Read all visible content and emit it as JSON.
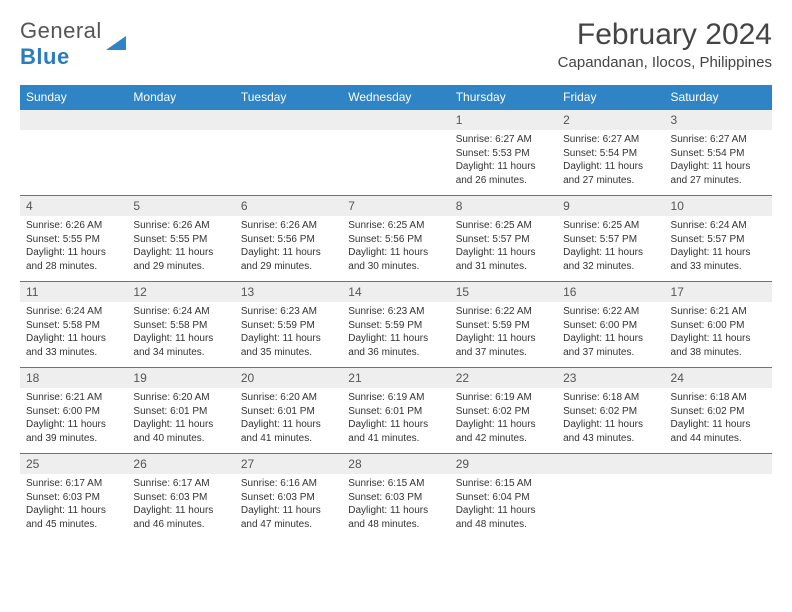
{
  "logo": {
    "text1": "General",
    "text2": "Blue"
  },
  "title": "February 2024",
  "location": "Capandanan, Ilocos, Philippines",
  "colors": {
    "header_bg": "#2e84c5",
    "header_text": "#ffffff",
    "daynum_bg": "#eeeeee",
    "border": "#2e84c5",
    "body_text": "#333333",
    "title_text": "#444444"
  },
  "weekdays": [
    "Sunday",
    "Monday",
    "Tuesday",
    "Wednesday",
    "Thursday",
    "Friday",
    "Saturday"
  ],
  "weeks": [
    {
      "nums": [
        "",
        "",
        "",
        "",
        "1",
        "2",
        "3"
      ],
      "cells": [
        null,
        null,
        null,
        null,
        {
          "sr": "Sunrise: 6:27 AM",
          "ss": "Sunset: 5:53 PM",
          "d1": "Daylight: 11 hours",
          "d2": "and 26 minutes."
        },
        {
          "sr": "Sunrise: 6:27 AM",
          "ss": "Sunset: 5:54 PM",
          "d1": "Daylight: 11 hours",
          "d2": "and 27 minutes."
        },
        {
          "sr": "Sunrise: 6:27 AM",
          "ss": "Sunset: 5:54 PM",
          "d1": "Daylight: 11 hours",
          "d2": "and 27 minutes."
        }
      ]
    },
    {
      "nums": [
        "4",
        "5",
        "6",
        "7",
        "8",
        "9",
        "10"
      ],
      "cells": [
        {
          "sr": "Sunrise: 6:26 AM",
          "ss": "Sunset: 5:55 PM",
          "d1": "Daylight: 11 hours",
          "d2": "and 28 minutes."
        },
        {
          "sr": "Sunrise: 6:26 AM",
          "ss": "Sunset: 5:55 PM",
          "d1": "Daylight: 11 hours",
          "d2": "and 29 minutes."
        },
        {
          "sr": "Sunrise: 6:26 AM",
          "ss": "Sunset: 5:56 PM",
          "d1": "Daylight: 11 hours",
          "d2": "and 29 minutes."
        },
        {
          "sr": "Sunrise: 6:25 AM",
          "ss": "Sunset: 5:56 PM",
          "d1": "Daylight: 11 hours",
          "d2": "and 30 minutes."
        },
        {
          "sr": "Sunrise: 6:25 AM",
          "ss": "Sunset: 5:57 PM",
          "d1": "Daylight: 11 hours",
          "d2": "and 31 minutes."
        },
        {
          "sr": "Sunrise: 6:25 AM",
          "ss": "Sunset: 5:57 PM",
          "d1": "Daylight: 11 hours",
          "d2": "and 32 minutes."
        },
        {
          "sr": "Sunrise: 6:24 AM",
          "ss": "Sunset: 5:57 PM",
          "d1": "Daylight: 11 hours",
          "d2": "and 33 minutes."
        }
      ]
    },
    {
      "nums": [
        "11",
        "12",
        "13",
        "14",
        "15",
        "16",
        "17"
      ],
      "cells": [
        {
          "sr": "Sunrise: 6:24 AM",
          "ss": "Sunset: 5:58 PM",
          "d1": "Daylight: 11 hours",
          "d2": "and 33 minutes."
        },
        {
          "sr": "Sunrise: 6:24 AM",
          "ss": "Sunset: 5:58 PM",
          "d1": "Daylight: 11 hours",
          "d2": "and 34 minutes."
        },
        {
          "sr": "Sunrise: 6:23 AM",
          "ss": "Sunset: 5:59 PM",
          "d1": "Daylight: 11 hours",
          "d2": "and 35 minutes."
        },
        {
          "sr": "Sunrise: 6:23 AM",
          "ss": "Sunset: 5:59 PM",
          "d1": "Daylight: 11 hours",
          "d2": "and 36 minutes."
        },
        {
          "sr": "Sunrise: 6:22 AM",
          "ss": "Sunset: 5:59 PM",
          "d1": "Daylight: 11 hours",
          "d2": "and 37 minutes."
        },
        {
          "sr": "Sunrise: 6:22 AM",
          "ss": "Sunset: 6:00 PM",
          "d1": "Daylight: 11 hours",
          "d2": "and 37 minutes."
        },
        {
          "sr": "Sunrise: 6:21 AM",
          "ss": "Sunset: 6:00 PM",
          "d1": "Daylight: 11 hours",
          "d2": "and 38 minutes."
        }
      ]
    },
    {
      "nums": [
        "18",
        "19",
        "20",
        "21",
        "22",
        "23",
        "24"
      ],
      "cells": [
        {
          "sr": "Sunrise: 6:21 AM",
          "ss": "Sunset: 6:00 PM",
          "d1": "Daylight: 11 hours",
          "d2": "and 39 minutes."
        },
        {
          "sr": "Sunrise: 6:20 AM",
          "ss": "Sunset: 6:01 PM",
          "d1": "Daylight: 11 hours",
          "d2": "and 40 minutes."
        },
        {
          "sr": "Sunrise: 6:20 AM",
          "ss": "Sunset: 6:01 PM",
          "d1": "Daylight: 11 hours",
          "d2": "and 41 minutes."
        },
        {
          "sr": "Sunrise: 6:19 AM",
          "ss": "Sunset: 6:01 PM",
          "d1": "Daylight: 11 hours",
          "d2": "and 41 minutes."
        },
        {
          "sr": "Sunrise: 6:19 AM",
          "ss": "Sunset: 6:02 PM",
          "d1": "Daylight: 11 hours",
          "d2": "and 42 minutes."
        },
        {
          "sr": "Sunrise: 6:18 AM",
          "ss": "Sunset: 6:02 PM",
          "d1": "Daylight: 11 hours",
          "d2": "and 43 minutes."
        },
        {
          "sr": "Sunrise: 6:18 AM",
          "ss": "Sunset: 6:02 PM",
          "d1": "Daylight: 11 hours",
          "d2": "and 44 minutes."
        }
      ]
    },
    {
      "nums": [
        "25",
        "26",
        "27",
        "28",
        "29",
        "",
        ""
      ],
      "cells": [
        {
          "sr": "Sunrise: 6:17 AM",
          "ss": "Sunset: 6:03 PM",
          "d1": "Daylight: 11 hours",
          "d2": "and 45 minutes."
        },
        {
          "sr": "Sunrise: 6:17 AM",
          "ss": "Sunset: 6:03 PM",
          "d1": "Daylight: 11 hours",
          "d2": "and 46 minutes."
        },
        {
          "sr": "Sunrise: 6:16 AM",
          "ss": "Sunset: 6:03 PM",
          "d1": "Daylight: 11 hours",
          "d2": "and 47 minutes."
        },
        {
          "sr": "Sunrise: 6:15 AM",
          "ss": "Sunset: 6:03 PM",
          "d1": "Daylight: 11 hours",
          "d2": "and 48 minutes."
        },
        {
          "sr": "Sunrise: 6:15 AM",
          "ss": "Sunset: 6:04 PM",
          "d1": "Daylight: 11 hours",
          "d2": "and 48 minutes."
        },
        null,
        null
      ]
    }
  ]
}
